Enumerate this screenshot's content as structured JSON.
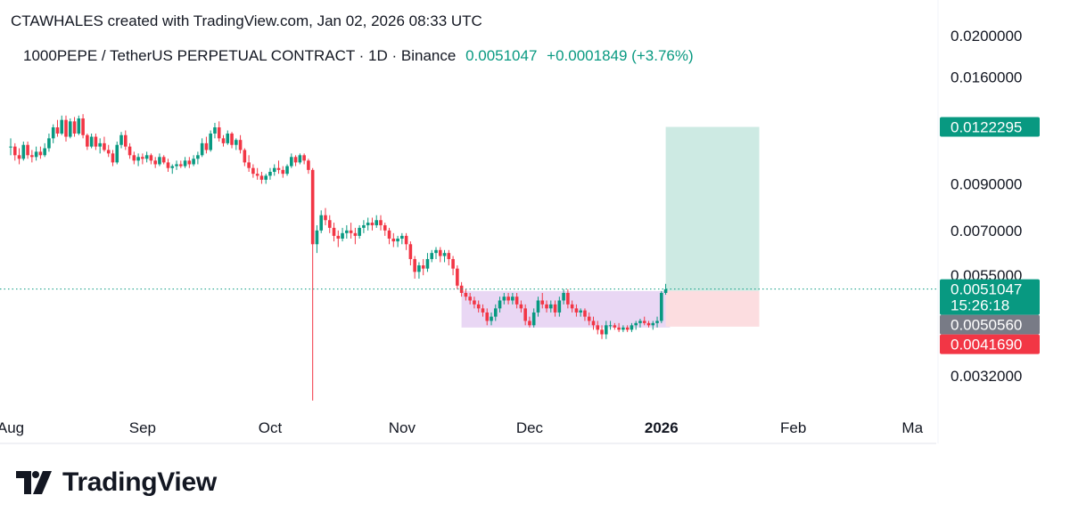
{
  "header": {
    "creator_line": "CTAWHALES created with TradingView.com, Jan 02, 2026 08:33 UTC",
    "symbol": "1000PEPE / TetherUS PERPETUAL CONTRACT · 1D · Binance",
    "last_price": "0.0051047",
    "change": "+0.0001849 (+3.76%)"
  },
  "brand": {
    "name": "TradingView",
    "icon": "tradingview-logo-icon"
  },
  "colors": {
    "up": "#089981",
    "down": "#f23645",
    "range_box": "#e1c9f0",
    "target_zone": "#cdeae3",
    "stop_zone": "#fcdde0",
    "price_line": "#089981",
    "axis_text": "#131722"
  },
  "chart_data": {
    "type": "candlestick",
    "title": "",
    "xlabel": "",
    "ylabel": "",
    "y_scale": "log",
    "ylim": [
      0.0026,
      0.0205
    ],
    "x_ticks": [
      {
        "label": "Aug",
        "date": "2025-08-01"
      },
      {
        "label": "Sep",
        "date": "2025-09-01"
      },
      {
        "label": "Oct",
        "date": "2025-10-01"
      },
      {
        "label": "Nov",
        "date": "2025-11-01"
      },
      {
        "label": "Dec",
        "date": "2025-12-01"
      },
      {
        "label": "2026",
        "date": "2026-01-01",
        "bold": true
      },
      {
        "label": "Feb",
        "date": "2026-02-01"
      },
      {
        "label": "Ma",
        "date": "2026-03-01"
      }
    ],
    "y_ticks": [
      "0.0200000",
      "0.0160000",
      "0.0090000",
      "0.0070000",
      "0.0055000",
      "0.0032000"
    ],
    "price_labels": [
      {
        "value": "0.0122295",
        "color": "#089981"
      },
      {
        "value": "0.0051047",
        "sub": "15:26:18",
        "color": "#089981"
      },
      {
        "value": "0.0050560",
        "color": "#787b86"
      },
      {
        "value": "0.0041690",
        "color": "#f23645"
      }
    ],
    "current_price": 0.0051047,
    "long_position": {
      "start": "2026-01-02",
      "end": "2026-01-24",
      "entry": 0.005056,
      "target": 0.0122295,
      "stop": 0.004169
    },
    "range_box": {
      "start": "2025-11-15",
      "end": "2026-01-03",
      "top": 0.00505,
      "bottom": 0.00415
    },
    "candles": [
      [
        "2025-08-01",
        0.011,
        0.0115,
        0.0105,
        0.011
      ],
      [
        "2025-08-02",
        0.011,
        0.0112,
        0.0102,
        0.0105
      ],
      [
        "2025-08-03",
        0.0105,
        0.0109,
        0.01,
        0.0103
      ],
      [
        "2025-08-04",
        0.0103,
        0.0113,
        0.0102,
        0.0111
      ],
      [
        "2025-08-05",
        0.0111,
        0.0113,
        0.0103,
        0.0105
      ],
      [
        "2025-08-06",
        0.0105,
        0.0108,
        0.0101,
        0.0104
      ],
      [
        "2025-08-07",
        0.0104,
        0.011,
        0.0102,
        0.0107
      ],
      [
        "2025-08-08",
        0.0107,
        0.011,
        0.0103,
        0.0105
      ],
      [
        "2025-08-09",
        0.0105,
        0.0112,
        0.0104,
        0.0109
      ],
      [
        "2025-08-10",
        0.0109,
        0.0118,
        0.0107,
        0.0115
      ],
      [
        "2025-08-11",
        0.0115,
        0.0124,
        0.0112,
        0.0122
      ],
      [
        "2025-08-12",
        0.0122,
        0.0127,
        0.0116,
        0.0118
      ],
      [
        "2025-08-13",
        0.0118,
        0.013,
        0.0117,
        0.0127
      ],
      [
        "2025-08-14",
        0.0127,
        0.013,
        0.0113,
        0.0116
      ],
      [
        "2025-08-15",
        0.0116,
        0.0128,
        0.0115,
        0.0126
      ],
      [
        "2025-08-16",
        0.0126,
        0.0129,
        0.0116,
        0.0118
      ],
      [
        "2025-08-17",
        0.0118,
        0.013,
        0.0117,
        0.0128
      ],
      [
        "2025-08-18",
        0.0128,
        0.0131,
        0.0115,
        0.0117
      ],
      [
        "2025-08-19",
        0.0117,
        0.0118,
        0.0108,
        0.011
      ],
      [
        "2025-08-20",
        0.011,
        0.0118,
        0.0109,
        0.0116
      ],
      [
        "2025-08-21",
        0.0116,
        0.0118,
        0.0108,
        0.011
      ],
      [
        "2025-08-22",
        0.011,
        0.0115,
        0.0106,
        0.0112
      ],
      [
        "2025-08-23",
        0.0112,
        0.0116,
        0.0107,
        0.0108
      ],
      [
        "2025-08-24",
        0.0108,
        0.0111,
        0.0104,
        0.0106
      ],
      [
        "2025-08-25",
        0.0106,
        0.0108,
        0.0099,
        0.0101
      ],
      [
        "2025-08-26",
        0.0101,
        0.0113,
        0.01,
        0.0111
      ],
      [
        "2025-08-27",
        0.0111,
        0.0119,
        0.0109,
        0.0117
      ],
      [
        "2025-08-28",
        0.0117,
        0.012,
        0.0108,
        0.011
      ],
      [
        "2025-08-29",
        0.011,
        0.0112,
        0.0103,
        0.0105
      ],
      [
        "2025-08-30",
        0.0105,
        0.0107,
        0.01,
        0.0102
      ],
      [
        "2025-08-31",
        0.0102,
        0.0106,
        0.0099,
        0.0104
      ],
      [
        "2025-09-01",
        0.0104,
        0.0106,
        0.01,
        0.0103
      ],
      [
        "2025-09-02",
        0.0103,
        0.0107,
        0.0101,
        0.0105
      ],
      [
        "2025-09-03",
        0.0105,
        0.0106,
        0.01,
        0.0102
      ],
      [
        "2025-09-04",
        0.0102,
        0.0104,
        0.0098,
        0.01
      ],
      [
        "2025-09-05",
        0.01,
        0.0106,
        0.0099,
        0.0104
      ],
      [
        "2025-09-06",
        0.0104,
        0.0105,
        0.01,
        0.0101
      ],
      [
        "2025-09-07",
        0.0101,
        0.0103,
        0.0096,
        0.0098
      ],
      [
        "2025-09-08",
        0.0098,
        0.01,
        0.0095,
        0.0099
      ],
      [
        "2025-09-09",
        0.0099,
        0.0102,
        0.0097,
        0.01
      ],
      [
        "2025-09-10",
        0.01,
        0.0102,
        0.0098,
        0.0099
      ],
      [
        "2025-09-11",
        0.0099,
        0.0104,
        0.0098,
        0.0102
      ],
      [
        "2025-09-12",
        0.0102,
        0.0104,
        0.0098,
        0.01
      ],
      [
        "2025-09-13",
        0.01,
        0.0105,
        0.0099,
        0.0103
      ],
      [
        "2025-09-14",
        0.0103,
        0.0107,
        0.01,
        0.0105
      ],
      [
        "2025-09-15",
        0.0105,
        0.0115,
        0.0104,
        0.0112
      ],
      [
        "2025-09-16",
        0.0112,
        0.0116,
        0.0106,
        0.0108
      ],
      [
        "2025-09-17",
        0.0108,
        0.012,
        0.0107,
        0.0118
      ],
      [
        "2025-09-18",
        0.0118,
        0.0125,
        0.0115,
        0.0122
      ],
      [
        "2025-09-19",
        0.0122,
        0.0126,
        0.0113,
        0.0115
      ],
      [
        "2025-09-20",
        0.0115,
        0.0117,
        0.011,
        0.0112
      ],
      [
        "2025-09-21",
        0.0112,
        0.012,
        0.0111,
        0.0118
      ],
      [
        "2025-09-22",
        0.0118,
        0.0119,
        0.0109,
        0.0111
      ],
      [
        "2025-09-23",
        0.0111,
        0.0115,
        0.0108,
        0.0114
      ],
      [
        "2025-09-24",
        0.0114,
        0.0117,
        0.0106,
        0.0108
      ],
      [
        "2025-09-25",
        0.0108,
        0.0109,
        0.0099,
        0.0101
      ],
      [
        "2025-09-26",
        0.0101,
        0.0105,
        0.0096,
        0.0098
      ],
      [
        "2025-09-27",
        0.0098,
        0.01,
        0.0093,
        0.0095
      ],
      [
        "2025-09-28",
        0.0095,
        0.0098,
        0.0092,
        0.0094
      ],
      [
        "2025-09-29",
        0.0094,
        0.0096,
        0.009,
        0.0092
      ],
      [
        "2025-09-30",
        0.0092,
        0.0095,
        0.009,
        0.0094
      ],
      [
        "2025-10-01",
        0.0094,
        0.0098,
        0.0092,
        0.0096
      ],
      [
        "2025-10-02",
        0.0096,
        0.01,
        0.0094,
        0.0098
      ],
      [
        "2025-10-03",
        0.0098,
        0.0102,
        0.0095,
        0.0097
      ],
      [
        "2025-10-04",
        0.0097,
        0.0099,
        0.0093,
        0.0095
      ],
      [
        "2025-10-05",
        0.0095,
        0.01,
        0.0094,
        0.0099
      ],
      [
        "2025-10-06",
        0.0099,
        0.0106,
        0.0098,
        0.0104
      ],
      [
        "2025-10-07",
        0.0104,
        0.0105,
        0.0099,
        0.0101
      ],
      [
        "2025-10-08",
        0.0101,
        0.0106,
        0.01,
        0.0105
      ],
      [
        "2025-10-09",
        0.0105,
        0.0106,
        0.01,
        0.0102
      ],
      [
        "2025-10-10",
        0.0102,
        0.0103,
        0.0095,
        0.0097
      ],
      [
        "2025-10-11",
        0.0097,
        0.0098,
        0.0028,
        0.0065
      ],
      [
        "2025-10-12",
        0.0065,
        0.0072,
        0.0062,
        0.007
      ],
      [
        "2025-10-13",
        0.007,
        0.0078,
        0.0069,
        0.0076
      ],
      [
        "2025-10-14",
        0.0076,
        0.0079,
        0.0072,
        0.0074
      ],
      [
        "2025-10-15",
        0.0074,
        0.0076,
        0.0069,
        0.0071
      ],
      [
        "2025-10-16",
        0.0071,
        0.0073,
        0.0066,
        0.0068
      ],
      [
        "2025-10-17",
        0.0068,
        0.007,
        0.0064,
        0.0067
      ],
      [
        "2025-10-18",
        0.0067,
        0.0071,
        0.0066,
        0.0069
      ],
      [
        "2025-10-19",
        0.0069,
        0.0072,
        0.0067,
        0.007
      ],
      [
        "2025-10-20",
        0.007,
        0.0073,
        0.0067,
        0.0069
      ],
      [
        "2025-10-21",
        0.0069,
        0.0071,
        0.0065,
        0.0068
      ],
      [
        "2025-10-22",
        0.0068,
        0.0072,
        0.0067,
        0.0071
      ],
      [
        "2025-10-23",
        0.0071,
        0.0074,
        0.0069,
        0.0072
      ],
      [
        "2025-10-24",
        0.0072,
        0.0075,
        0.007,
        0.0073
      ],
      [
        "2025-10-25",
        0.0073,
        0.0075,
        0.007,
        0.0072
      ],
      [
        "2025-10-26",
        0.0072,
        0.0076,
        0.0071,
        0.0074
      ],
      [
        "2025-10-27",
        0.0074,
        0.0076,
        0.007,
        0.0072
      ],
      [
        "2025-10-28",
        0.0072,
        0.0073,
        0.0068,
        0.007
      ],
      [
        "2025-10-29",
        0.007,
        0.0071,
        0.0065,
        0.0067
      ],
      [
        "2025-10-30",
        0.0067,
        0.0069,
        0.0064,
        0.0066
      ],
      [
        "2025-10-31",
        0.0066,
        0.0068,
        0.0064,
        0.0067
      ],
      [
        "2025-11-01",
        0.0067,
        0.0069,
        0.0065,
        0.0068
      ],
      [
        "2025-11-02",
        0.0068,
        0.0069,
        0.0063,
        0.0065
      ],
      [
        "2025-11-03",
        0.0065,
        0.0066,
        0.0058,
        0.006
      ],
      [
        "2025-11-04",
        0.006,
        0.0061,
        0.0054,
        0.0056
      ],
      [
        "2025-11-05",
        0.0056,
        0.0059,
        0.0054,
        0.0058
      ],
      [
        "2025-11-06",
        0.0058,
        0.006,
        0.0055,
        0.0057
      ],
      [
        "2025-11-07",
        0.0057,
        0.0062,
        0.0056,
        0.006
      ],
      [
        "2025-11-08",
        0.006,
        0.0063,
        0.0059,
        0.0062
      ],
      [
        "2025-11-09",
        0.0062,
        0.0064,
        0.006,
        0.0063
      ],
      [
        "2025-11-10",
        0.0063,
        0.0064,
        0.0059,
        0.0061
      ],
      [
        "2025-11-11",
        0.0061,
        0.0063,
        0.0059,
        0.0062
      ],
      [
        "2025-11-12",
        0.0062,
        0.0063,
        0.0058,
        0.006
      ],
      [
        "2025-11-13",
        0.006,
        0.0061,
        0.0055,
        0.0057
      ],
      [
        "2025-11-14",
        0.0057,
        0.0058,
        0.0051,
        0.0052
      ],
      [
        "2025-11-15",
        0.0052,
        0.0053,
        0.0049,
        0.005
      ],
      [
        "2025-11-16",
        0.005,
        0.0051,
        0.0048,
        0.0049
      ],
      [
        "2025-11-17",
        0.0049,
        0.005,
        0.0047,
        0.0048
      ],
      [
        "2025-11-18",
        0.0048,
        0.0049,
        0.0046,
        0.0047
      ],
      [
        "2025-11-19",
        0.0047,
        0.0048,
        0.0045,
        0.0046
      ],
      [
        "2025-11-20",
        0.0046,
        0.0047,
        0.0044,
        0.0045
      ],
      [
        "2025-11-21",
        0.0045,
        0.0046,
        0.0042,
        0.0043
      ],
      [
        "2025-11-22",
        0.0043,
        0.0045,
        0.0042,
        0.0044
      ],
      [
        "2025-11-23",
        0.0044,
        0.0047,
        0.0043,
        0.0046
      ],
      [
        "2025-11-24",
        0.0046,
        0.0049,
        0.0045,
        0.0048
      ],
      [
        "2025-11-25",
        0.0048,
        0.005,
        0.0047,
        0.0049
      ],
      [
        "2025-11-26",
        0.0049,
        0.005,
        0.0047,
        0.0048
      ],
      [
        "2025-11-27",
        0.0048,
        0.005,
        0.0047,
        0.0049
      ],
      [
        "2025-11-28",
        0.0049,
        0.005,
        0.0046,
        0.0047
      ],
      [
        "2025-11-29",
        0.0047,
        0.0048,
        0.0045,
        0.0046
      ],
      [
        "2025-11-30",
        0.0046,
        0.0047,
        0.0042,
        0.0043
      ],
      [
        "2025-12-01",
        0.0043,
        0.0044,
        0.00415,
        0.0042
      ],
      [
        "2025-12-02",
        0.0042,
        0.0046,
        0.00415,
        0.0045
      ],
      [
        "2025-12-03",
        0.0045,
        0.0049,
        0.0044,
        0.0048
      ],
      [
        "2025-12-04",
        0.0048,
        0.005,
        0.0046,
        0.0047
      ],
      [
        "2025-12-05",
        0.0047,
        0.0048,
        0.0045,
        0.0046
      ],
      [
        "2025-12-06",
        0.0046,
        0.0048,
        0.0045,
        0.0047
      ],
      [
        "2025-12-07",
        0.0047,
        0.0048,
        0.0044,
        0.0045
      ],
      [
        "2025-12-08",
        0.0045,
        0.0049,
        0.0044,
        0.0048
      ],
      [
        "2025-12-09",
        0.0048,
        0.0051,
        0.0047,
        0.005
      ],
      [
        "2025-12-10",
        0.005,
        0.0051,
        0.0046,
        0.0047
      ],
      [
        "2025-12-11",
        0.0047,
        0.0048,
        0.0045,
        0.0046
      ],
      [
        "2025-12-12",
        0.0046,
        0.0047,
        0.0044,
        0.0045
      ],
      [
        "2025-12-13",
        0.0045,
        0.0046,
        0.0044,
        0.00455
      ],
      [
        "2025-12-14",
        0.00455,
        0.0046,
        0.0043,
        0.0044
      ],
      [
        "2025-12-15",
        0.0044,
        0.0045,
        0.0042,
        0.0043
      ],
      [
        "2025-12-16",
        0.0043,
        0.0044,
        0.0041,
        0.0042
      ],
      [
        "2025-12-17",
        0.0042,
        0.0043,
        0.004,
        0.0041
      ],
      [
        "2025-12-18",
        0.0041,
        0.0042,
        0.0039,
        0.004
      ],
      [
        "2025-12-19",
        0.004,
        0.0043,
        0.0039,
        0.0042
      ],
      [
        "2025-12-20",
        0.0042,
        0.0043,
        0.0041,
        0.0042
      ],
      [
        "2025-12-21",
        0.0042,
        0.00425,
        0.0041,
        0.00415
      ],
      [
        "2025-12-22",
        0.00415,
        0.00425,
        0.00405,
        0.0041
      ],
      [
        "2025-12-23",
        0.0041,
        0.0042,
        0.00405,
        0.00415
      ],
      [
        "2025-12-24",
        0.00415,
        0.0042,
        0.00405,
        0.0041
      ],
      [
        "2025-12-25",
        0.0041,
        0.00425,
        0.00405,
        0.0042
      ],
      [
        "2025-12-26",
        0.0042,
        0.0043,
        0.0041,
        0.00425
      ],
      [
        "2025-12-27",
        0.00425,
        0.00435,
        0.00415,
        0.0043
      ],
      [
        "2025-12-28",
        0.0043,
        0.0044,
        0.0042,
        0.00425
      ],
      [
        "2025-12-29",
        0.00425,
        0.0043,
        0.00415,
        0.0042
      ],
      [
        "2025-12-30",
        0.0042,
        0.0043,
        0.0041,
        0.00425
      ],
      [
        "2025-12-31",
        0.00425,
        0.0044,
        0.00415,
        0.0043
      ],
      [
        "2026-01-01",
        0.0043,
        0.00505,
        0.00425,
        0.005
      ],
      [
        "2026-01-02",
        0.005,
        0.00525,
        0.00495,
        0.0051
      ]
    ]
  }
}
